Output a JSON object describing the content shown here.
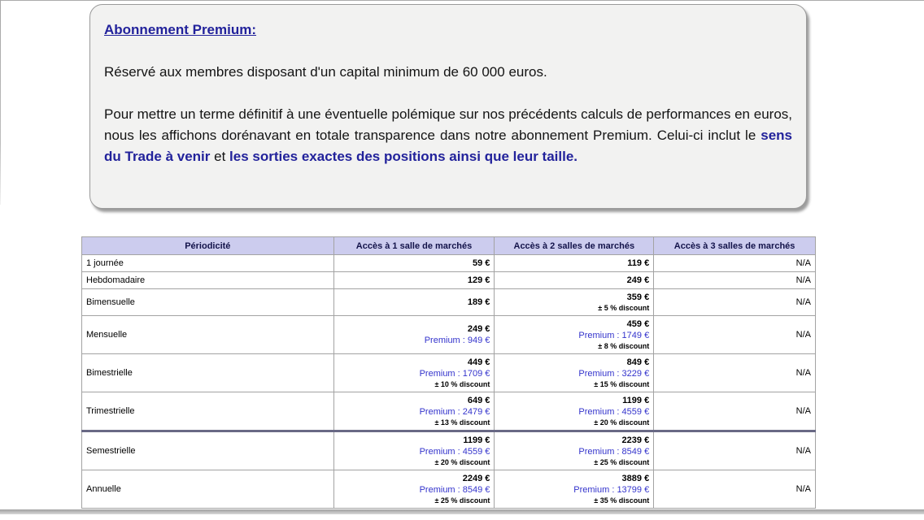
{
  "colors": {
    "premium_blue": "#3333cc",
    "navy_accent": "#22229b",
    "table_header_bg": "#ccccee",
    "divider": "#696985"
  },
  "premium_box": {
    "title": "Abonnement Premium:",
    "paragraph1": "Réservé aux membres disposant d'un capital minimum de 60 000 euros.",
    "paragraph2_segments": [
      {
        "text": "Pour mettre un terme définitif à une éventuelle polémique sur nos précédents calculs de performances en euros, nous les affichons dorénavant en totale transparence dans notre abonnement Premium. Celui-ci inclut le ",
        "bold": false
      },
      {
        "text": "sens du Trade à venir",
        "bold": true
      },
      {
        "text": " et ",
        "bold": false
      },
      {
        "text": "les sorties exactes des positions ainsi que leur taille.",
        "bold": true
      }
    ]
  },
  "pricing_table": {
    "headers": [
      "Périodicité",
      "Accès à 1 salle de marchés",
      "Accès à 2 salles de marchés",
      "Accès à 3 salles de marchés"
    ],
    "rows": [
      {
        "period": "1 journée",
        "cells": [
          {
            "price": "59 €"
          },
          {
            "price": "119 €"
          },
          {
            "na": "N/A"
          }
        ]
      },
      {
        "period": "Hebdomadaire",
        "cells": [
          {
            "price": "129 €"
          },
          {
            "price": "249 €"
          },
          {
            "na": "N/A"
          }
        ]
      },
      {
        "period": "Bimensuelle",
        "cells": [
          {
            "price": "189 €"
          },
          {
            "price": "359 €",
            "discount": "± 5 % discount"
          },
          {
            "na": "N/A"
          }
        ]
      },
      {
        "period": "Mensuelle",
        "cells": [
          {
            "price": "249 €",
            "premium": "Premium : 949 €"
          },
          {
            "price": "459 €",
            "premium": "Premium : 1749 €",
            "discount": "± 8 % discount"
          },
          {
            "na": "N/A"
          }
        ]
      },
      {
        "period": "Bimestrielle",
        "cells": [
          {
            "price": "449 €",
            "premium": "Premium : 1709 €",
            "discount": "± 10 % discount"
          },
          {
            "price": "849 €",
            "premium": "Premium : 3229 €",
            "discount": "± 15 % discount"
          },
          {
            "na": "N/A"
          }
        ]
      },
      {
        "period": "Trimestrielle",
        "cells": [
          {
            "price": "649 €",
            "premium": "Premium : 2479 €",
            "discount": "± 13 % discount"
          },
          {
            "price": "1199 €",
            "premium": "Premium : 4559 €",
            "discount": "± 20 % discount"
          },
          {
            "na": "N/A"
          }
        ]
      },
      {
        "period": "Semestrielle",
        "divider_before": true,
        "cells": [
          {
            "price": "1199 €",
            "premium": "Premium : 4559 €",
            "discount": "± 20 % discount"
          },
          {
            "price": "2239 €",
            "premium": "Premium : 8549 €",
            "discount": "± 25 % discount"
          },
          {
            "na": "N/A"
          }
        ]
      },
      {
        "period": "Annuelle",
        "cells": [
          {
            "price": "2249 €",
            "premium": "Premium : 8549 €",
            "discount": "± 25 % discount"
          },
          {
            "price": "3889 €",
            "premium": "Premium : 13799 €",
            "discount": "± 35 % discount"
          },
          {
            "na": "N/A"
          }
        ]
      }
    ]
  }
}
